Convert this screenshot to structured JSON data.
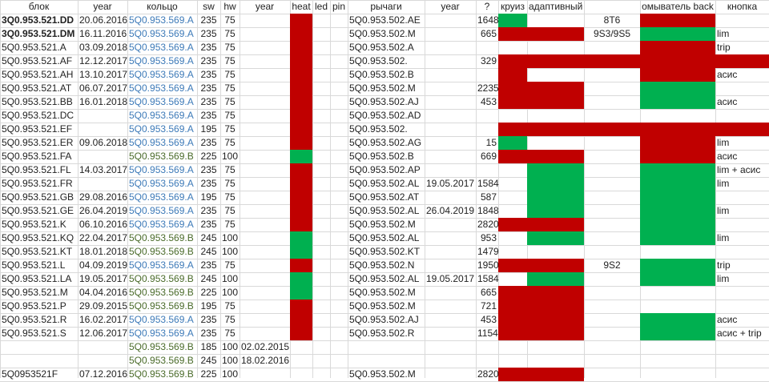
{
  "headers": [
    "блок",
    "year",
    "кольцо",
    "sw",
    "hw",
    "year",
    "heat",
    "led",
    "pin",
    "рычаги",
    "year",
    "?",
    "круиз",
    "адаптивный",
    "",
    "омыватель back",
    "кнопка"
  ],
  "colors": {
    "red": "#c00000",
    "green": "#00b050",
    "blue_text": "#3d7ab8",
    "olive_text": "#4a6b2a"
  },
  "rows": [
    {
      "block": "3Q0.953.521.DD",
      "year": "20.06.2016",
      "ring": "5Q0.953.569.A",
      "sw": "235",
      "hw": "75",
      "ryear": "",
      "heat": "red",
      "lever": "5Q0.953.502.AE",
      "lyear": "",
      "q": "1648",
      "cruise": "green",
      "adaptive": "",
      "extra": "8T6",
      "washer": "red",
      "button": ""
    },
    {
      "block": "3Q0.953.521.DM",
      "year": "16.11.2016",
      "ring": "5Q0.953.569.A",
      "sw": "235",
      "hw": "75",
      "ryear": "",
      "heat": "red",
      "lever": "5Q0.953.502.M",
      "lyear": "",
      "q": "665",
      "cruise": "red",
      "adaptive": "red",
      "extra": "9S3/9S5",
      "washer": "green",
      "button": "lim"
    },
    {
      "block": "5Q0.953.521.A",
      "year": "03.09.2018",
      "ring": "5Q0.953.569.A",
      "sw": "235",
      "hw": "75",
      "ryear": "",
      "heat": "red",
      "lever": "5Q0.953.502.A",
      "lyear": "",
      "q": "",
      "cruise": "",
      "adaptive": "",
      "extra": "",
      "washer": "red",
      "button": "trip"
    },
    {
      "block": "5Q0.953.521.AF",
      "year": "12.12.2017",
      "ring": "5Q0.953.569.A",
      "sw": "235",
      "hw": "75",
      "ryear": "",
      "heat": "red",
      "lever": "5Q0.953.502.",
      "lyear": "",
      "q": "329",
      "cruise": "red",
      "adaptive": "red",
      "extra": "red",
      "washer": "red",
      "button": "red"
    },
    {
      "block": "5Q0.953.521.AH",
      "year": "13.10.2017",
      "ring": "5Q0.953.569.A",
      "sw": "235",
      "hw": "75",
      "ryear": "",
      "heat": "red",
      "lever": "5Q0.953.502.B",
      "lyear": "",
      "q": "",
      "cruise": "red",
      "adaptive": "",
      "extra": "",
      "washer": "red",
      "button": "асис"
    },
    {
      "block": "5Q0.953.521.AT",
      "year": "06.07.2017",
      "ring": "5Q0.953.569.A",
      "sw": "235",
      "hw": "75",
      "ryear": "",
      "heat": "red",
      "lever": "5Q0.953.502.M",
      "lyear": "",
      "q": "2235",
      "cruise": "red",
      "adaptive": "red",
      "extra": "",
      "washer": "green",
      "button": ""
    },
    {
      "block": "5Q0.953.521.BB",
      "year": "16.01.2018",
      "ring": "5Q0.953.569.A",
      "sw": "235",
      "hw": "75",
      "ryear": "",
      "heat": "red",
      "lever": "5Q0.953.502.AJ",
      "lyear": "",
      "q": "453",
      "cruise": "red",
      "adaptive": "red",
      "extra": "",
      "washer": "green",
      "button": "асис"
    },
    {
      "block": "5Q0.953.521.DC",
      "year": "",
      "ring": "5Q0.953.569.A",
      "sw": "235",
      "hw": "75",
      "ryear": "",
      "heat": "red",
      "lever": "5Q0.953.502.AD",
      "lyear": "",
      "q": "",
      "cruise": "",
      "adaptive": "",
      "extra": "",
      "washer": "",
      "button": ""
    },
    {
      "block": "5Q0.953.521.EF",
      "year": "",
      "ring": "5Q0.953.569.A",
      "sw": "195",
      "hw": "75",
      "ryear": "",
      "heat": "red",
      "lever": "5Q0.953.502.",
      "lyear": "",
      "q": "",
      "cruise": "red",
      "adaptive": "red",
      "extra": "red",
      "washer": "red",
      "button": "red"
    },
    {
      "block": "5Q0.953.521.ER",
      "year": "09.06.2018",
      "ring": "5Q0.953.569.A",
      "sw": "235",
      "hw": "75",
      "ryear": "",
      "heat": "red",
      "lever": "5Q0.953.502.AG",
      "lyear": "",
      "q": "15",
      "cruise": "green",
      "adaptive": "",
      "extra": "",
      "washer": "red",
      "button": "lim"
    },
    {
      "block": "5Q0.953.521.FA",
      "year": "",
      "ring": "5Q0.953.569.B",
      "sw": "225",
      "hw": "100",
      "ryear": "",
      "heat": "green",
      "lever": "5Q0.953.502.B",
      "lyear": "",
      "q": "669",
      "cruise": "red",
      "adaptive": "red",
      "extra": "",
      "washer": "red",
      "button": "асис"
    },
    {
      "block": "5Q0.953.521.FL",
      "year": "14.03.2017",
      "ring": "5Q0.953.569.A",
      "sw": "235",
      "hw": "75",
      "ryear": "",
      "heat": "red",
      "lever": "5Q0.953.502.AP",
      "lyear": "",
      "q": "",
      "cruise": "",
      "adaptive": "green",
      "extra": "",
      "washer": "green",
      "button": "lim + асис"
    },
    {
      "block": "5Q0.953.521.FR",
      "year": "",
      "ring": "5Q0.953.569.A",
      "sw": "235",
      "hw": "75",
      "ryear": "",
      "heat": "red",
      "lever": "5Q0.953.502.AL",
      "lyear": "19.05.2017",
      "q": "1584",
      "cruise": "",
      "adaptive": "green",
      "extra": "",
      "washer": "green",
      "button": "lim"
    },
    {
      "block": "5Q0.953.521.GB",
      "year": "29.08.2016",
      "ring": "5Q0.953.569.A",
      "sw": "195",
      "hw": "75",
      "ryear": "",
      "heat": "red",
      "lever": "5Q0.953.502.AT",
      "lyear": "",
      "q": "587",
      "cruise": "",
      "adaptive": "green",
      "extra": "",
      "washer": "green",
      "button": ""
    },
    {
      "block": "5Q0.953.521.GE",
      "year": "26.04.2019",
      "ring": "5Q0.953.569.A",
      "sw": "235",
      "hw": "75",
      "ryear": "",
      "heat": "red",
      "lever": "5Q0.953.502.AL",
      "lyear": "26.04.2019",
      "q": "1848",
      "cruise": "",
      "adaptive": "green",
      "extra": "",
      "washer": "green",
      "button": "lim"
    },
    {
      "block": "5Q0.953.521.K",
      "year": "06.10.2016",
      "ring": "5Q0.953.569.A",
      "sw": "235",
      "hw": "75",
      "ryear": "",
      "heat": "red",
      "lever": "5Q0.953.502.M",
      "lyear": "",
      "q": "2820",
      "cruise": "red",
      "adaptive": "red",
      "extra": "",
      "washer": "green",
      "button": ""
    },
    {
      "block": "5Q0.953.521.KQ",
      "year": "22.04.2017",
      "ring": "5Q0.953.569.B",
      "sw": "245",
      "hw": "100",
      "ryear": "",
      "heat": "green",
      "lever": "5Q0.953.502.AL",
      "lyear": "",
      "q": "953",
      "cruise": "",
      "adaptive": "green",
      "extra": "",
      "washer": "green",
      "button": "lim"
    },
    {
      "block": "5Q0.953.521.KT",
      "year": "18.01.2018",
      "ring": "5Q0.953.569.B",
      "sw": "245",
      "hw": "100",
      "ryear": "",
      "heat": "green",
      "lever": "5Q0.953.502.KT",
      "lyear": "",
      "q": "1479",
      "cruise": "",
      "adaptive": "",
      "extra": "",
      "washer": "",
      "button": ""
    },
    {
      "block": "5Q0.953.521.L",
      "year": "04.09.2019",
      "ring": "5Q0.953.569.A",
      "sw": "235",
      "hw": "75",
      "ryear": "",
      "heat": "red",
      "lever": "5Q0.953.502.N",
      "lyear": "",
      "q": "1950",
      "cruise": "red",
      "adaptive": "red",
      "extra": "9S2",
      "washer": "green",
      "button": "trip"
    },
    {
      "block": "5Q0.953.521.LA",
      "year": "19.05.2017",
      "ring": "5Q0.953.569.B",
      "sw": "245",
      "hw": "100",
      "ryear": "",
      "heat": "green",
      "lever": "5Q0.953.502.AL",
      "lyear": "19.05.2017",
      "q": "1584",
      "cruise": "",
      "adaptive": "green",
      "extra": "",
      "washer": "green",
      "button": "lim"
    },
    {
      "block": "5Q0.953.521.M",
      "year": "04.04.2016",
      "ring": "5Q0.953.569.B",
      "sw": "225",
      "hw": "100",
      "ryear": "",
      "heat": "green",
      "lever": "5Q0.953.502.M",
      "lyear": "",
      "q": "665",
      "cruise": "red",
      "adaptive": "red",
      "extra": "",
      "washer": "",
      "button": ""
    },
    {
      "block": "5Q0.953.521.P",
      "year": "29.09.2015",
      "ring": "5Q0.953.569.B",
      "sw": "195",
      "hw": "75",
      "ryear": "",
      "heat": "red",
      "lever": "5Q0.953.502.M",
      "lyear": "",
      "q": "721",
      "cruise": "red",
      "adaptive": "red",
      "extra": "",
      "washer": "",
      "button": ""
    },
    {
      "block": "5Q0.953.521.R",
      "year": "16.02.2017",
      "ring": "5Q0.953.569.A",
      "sw": "235",
      "hw": "75",
      "ryear": "",
      "heat": "red",
      "lever": "5Q0.953.502.AJ",
      "lyear": "",
      "q": "453",
      "cruise": "red",
      "adaptive": "red",
      "extra": "",
      "washer": "green",
      "button": "асис"
    },
    {
      "block": "5Q0.953.521.S",
      "year": "12.06.2017",
      "ring": "5Q0.953.569.A",
      "sw": "235",
      "hw": "75",
      "ryear": "",
      "heat": "red",
      "lever": "5Q0.953.502.R",
      "lyear": "",
      "q": "1154",
      "cruise": "red",
      "adaptive": "red",
      "extra": "",
      "washer": "green",
      "button": "асис + trip"
    },
    {
      "block": "",
      "year": "",
      "ring": "5Q0.953.569.B",
      "sw": "185",
      "hw": "100",
      "ryear": "02.02.2015",
      "heat": "",
      "lever": "",
      "lyear": "",
      "q": "",
      "cruise": "",
      "adaptive": "",
      "extra": "",
      "washer": "",
      "button": ""
    },
    {
      "block": "",
      "year": "",
      "ring": "5Q0.953.569.B",
      "sw": "245",
      "hw": "100",
      "ryear": "18.02.2016",
      "heat": "",
      "lever": "",
      "lyear": "",
      "q": "",
      "cruise": "",
      "adaptive": "",
      "extra": "",
      "washer": "",
      "button": ""
    },
    {
      "block": "5Q0953521F",
      "year": "07.12.2016",
      "ring": "5Q0.953.569.B",
      "sw": "225",
      "hw": "100",
      "ryear": "",
      "heat": "",
      "lever": "5Q0.953.502.M",
      "lyear": "",
      "q": "2820",
      "cruise": "red",
      "adaptive": "red",
      "extra": "",
      "washer": "",
      "button": ""
    }
  ]
}
